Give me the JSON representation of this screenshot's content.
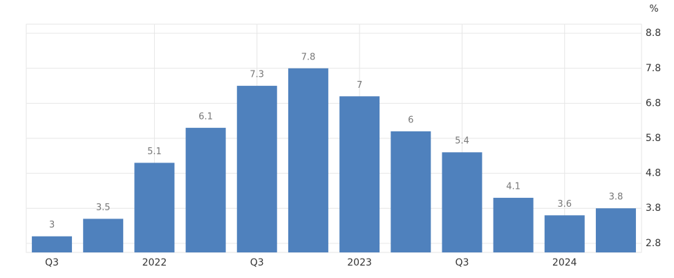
{
  "chart_data": {
    "type": "bar",
    "unit": "%",
    "categories": [
      "Q3",
      null,
      "2022",
      null,
      "Q3",
      null,
      "2023",
      null,
      "Q3",
      null,
      "2024",
      null
    ],
    "values": [
      3,
      3.5,
      5.1,
      6.1,
      7.3,
      7.8,
      7,
      6,
      5.4,
      4.1,
      3.6,
      3.8
    ],
    "color": "#4f81bd",
    "ylim": [
      2.54,
      9.06
    ],
    "yticks": [
      2.8,
      3.8,
      4.8,
      5.8,
      6.8,
      7.8,
      8.8
    ],
    "grid": true
  }
}
